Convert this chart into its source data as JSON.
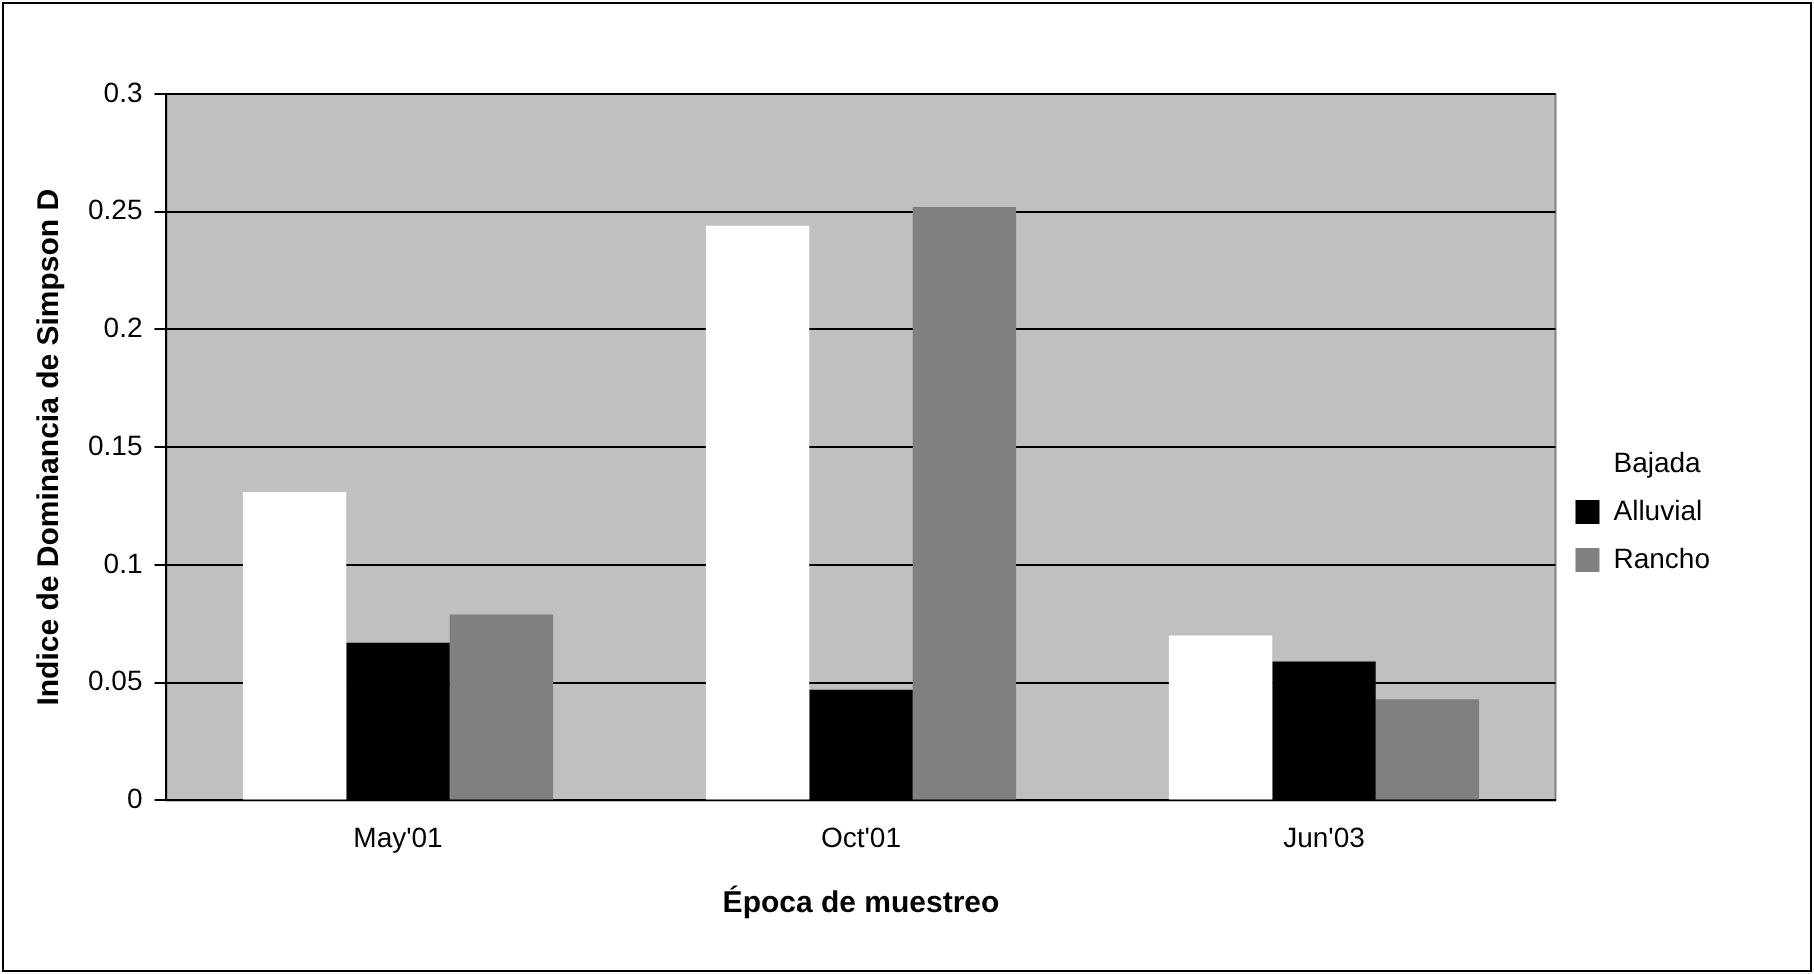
{
  "chart_data": {
    "type": "bar",
    "xlabel": "Época de muestreo",
    "ylabel": "Indice de Dominancia de Simpson D",
    "categories": [
      "May'01",
      "Oct'01",
      "Jun'03"
    ],
    "series": [
      {
        "name": "Bajada",
        "color": "#ffffff",
        "values": [
          0.131,
          0.244,
          0.07
        ]
      },
      {
        "name": "Alluvial",
        "color": "#000000",
        "values": [
          0.067,
          0.047,
          0.059
        ]
      },
      {
        "name": "Rancho",
        "color": "#808080",
        "values": [
          0.079,
          0.252,
          0.043
        ]
      }
    ],
    "ylim": [
      0,
      0.3
    ],
    "yticks": [
      0,
      0.05,
      0.1,
      0.15,
      0.2,
      0.25,
      0.3
    ],
    "grid": "y",
    "legend": "right"
  }
}
